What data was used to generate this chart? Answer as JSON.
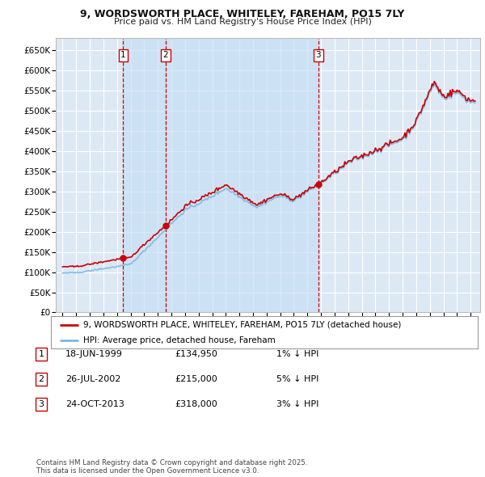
{
  "title1": "9, WORDSWORTH PLACE, WHITELEY, FAREHAM, PO15 7LY",
  "title2": "Price paid vs. HM Land Registry's House Price Index (HPI)",
  "background_color": "#ffffff",
  "plot_bg_color": "#dce9f5",
  "grid_color": "#ffffff",
  "hpi_color": "#7ab8e0",
  "price_color": "#cc0000",
  "vline_color": "#cc0000",
  "shade_color": "#c8dff5",
  "sale_points": [
    {
      "date_num": 1999.46,
      "price": 134950,
      "label": "1"
    },
    {
      "date_num": 2002.57,
      "price": 215000,
      "label": "2"
    },
    {
      "date_num": 2013.81,
      "price": 318000,
      "label": "3"
    }
  ],
  "legend_label_price": "9, WORDSWORTH PLACE, WHITELEY, FAREHAM, PO15 7LY (detached house)",
  "legend_label_hpi": "HPI: Average price, detached house, Fareham",
  "table_entries": [
    {
      "num": "1",
      "date": "18-JUN-1999",
      "price": "£134,950",
      "note": "1% ↓ HPI"
    },
    {
      "num": "2",
      "date": "26-JUL-2002",
      "price": "£215,000",
      "note": "5% ↓ HPI"
    },
    {
      "num": "3",
      "date": "24-OCT-2013",
      "price": "£318,000",
      "note": "3% ↓ HPI"
    }
  ],
  "footer": "Contains HM Land Registry data © Crown copyright and database right 2025.\nThis data is licensed under the Open Government Licence v3.0.",
  "ylim": [
    0,
    680000
  ],
  "yticks": [
    0,
    50000,
    100000,
    150000,
    200000,
    250000,
    300000,
    350000,
    400000,
    450000,
    500000,
    550000,
    600000,
    650000
  ],
  "xlim_start": 1994.5,
  "xlim_end": 2025.7
}
